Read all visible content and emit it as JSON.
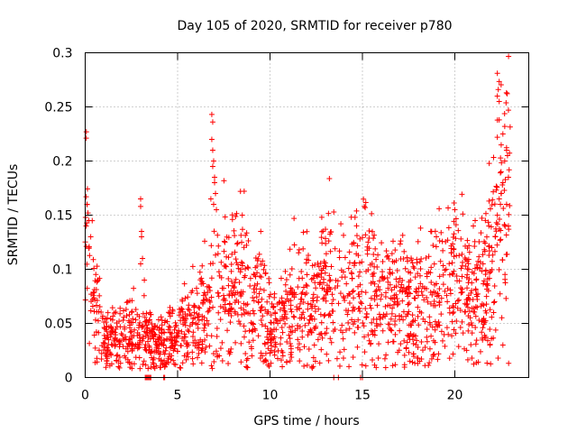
{
  "chart_data": {
    "type": "scatter",
    "title": "Day 105 of 2020, SRMTID for receiver p780",
    "xlabel": "GPS time / hours",
    "ylabel": "SRMTID / TECUs",
    "xlim": [
      0,
      24
    ],
    "ylim": [
      0,
      0.3
    ],
    "grid": true,
    "marker": "+",
    "colors": {
      "points": "#ff0000",
      "axes": "#000000",
      "grid": "#a0a0a0"
    },
    "x_ticks": [
      {
        "value": 0,
        "label": "0"
      },
      {
        "value": 5,
        "label": "5"
      },
      {
        "value": 10,
        "label": "10"
      },
      {
        "value": 15,
        "label": "15"
      },
      {
        "value": 20,
        "label": "20"
      }
    ],
    "y_ticks": [
      {
        "value": 0,
        "label": "0"
      },
      {
        "value": 0.05,
        "label": "0.05"
      },
      {
        "value": 0.1,
        "label": "0.1"
      },
      {
        "value": 0.15,
        "label": "0.15"
      },
      {
        "value": 0.2,
        "label": "0.2"
      },
      {
        "value": 0.25,
        "label": "0.25"
      },
      {
        "value": 0.3,
        "label": "0.3"
      }
    ],
    "trend": [
      {
        "x": 0.0,
        "y": 0.125
      },
      {
        "x": 0.25,
        "y": 0.11
      },
      {
        "x": 0.5,
        "y": 0.08
      },
      {
        "x": 0.8,
        "y": 0.05
      },
      {
        "x": 1.0,
        "y": 0.035
      },
      {
        "x": 1.5,
        "y": 0.035
      },
      {
        "x": 2.0,
        "y": 0.038
      },
      {
        "x": 2.5,
        "y": 0.042
      },
      {
        "x": 3.0,
        "y": 0.04
      },
      {
        "x": 3.5,
        "y": 0.03
      },
      {
        "x": 4.0,
        "y": 0.03
      },
      {
        "x": 4.5,
        "y": 0.035
      },
      {
        "x": 5.0,
        "y": 0.04
      },
      {
        "x": 5.5,
        "y": 0.05
      },
      {
        "x": 6.0,
        "y": 0.055
      },
      {
        "x": 6.5,
        "y": 0.06
      },
      {
        "x": 7.0,
        "y": 0.08
      },
      {
        "x": 7.5,
        "y": 0.085
      },
      {
        "x": 8.0,
        "y": 0.08
      },
      {
        "x": 8.5,
        "y": 0.085
      },
      {
        "x": 9.0,
        "y": 0.075
      },
      {
        "x": 9.5,
        "y": 0.06
      },
      {
        "x": 10.0,
        "y": 0.055
      },
      {
        "x": 10.5,
        "y": 0.05
      },
      {
        "x": 11.0,
        "y": 0.06
      },
      {
        "x": 11.5,
        "y": 0.065
      },
      {
        "x": 12.0,
        "y": 0.065
      },
      {
        "x": 12.5,
        "y": 0.07
      },
      {
        "x": 13.0,
        "y": 0.085
      },
      {
        "x": 13.5,
        "y": 0.08
      },
      {
        "x": 14.0,
        "y": 0.075
      },
      {
        "x": 14.5,
        "y": 0.08
      },
      {
        "x": 15.0,
        "y": 0.095
      },
      {
        "x": 15.5,
        "y": 0.08
      },
      {
        "x": 16.0,
        "y": 0.07
      },
      {
        "x": 16.5,
        "y": 0.07
      },
      {
        "x": 17.0,
        "y": 0.075
      },
      {
        "x": 17.5,
        "y": 0.065
      },
      {
        "x": 18.0,
        "y": 0.065
      },
      {
        "x": 18.5,
        "y": 0.07
      },
      {
        "x": 19.0,
        "y": 0.075
      },
      {
        "x": 19.5,
        "y": 0.08
      },
      {
        "x": 20.0,
        "y": 0.085
      },
      {
        "x": 20.5,
        "y": 0.085
      },
      {
        "x": 21.0,
        "y": 0.08
      },
      {
        "x": 21.5,
        "y": 0.075
      },
      {
        "x": 22.0,
        "y": 0.1
      },
      {
        "x": 22.5,
        "y": 0.15
      },
      {
        "x": 23.0,
        "y": 0.15
      }
    ],
    "spikes": [
      {
        "x": 0.05,
        "y": 0.167
      },
      {
        "x": 0.1,
        "y": 0.16
      },
      {
        "x": 0.15,
        "y": 0.152
      },
      {
        "x": 0.2,
        "y": 0.145
      },
      {
        "x": 0.3,
        "y": 0.13
      },
      {
        "x": 0.05,
        "y": 0.14
      },
      {
        "x": 3.0,
        "y": 0.165
      },
      {
        "x": 3.0,
        "y": 0.158
      },
      {
        "x": 3.05,
        "y": 0.135
      },
      {
        "x": 3.05,
        "y": 0.13
      },
      {
        "x": 3.1,
        "y": 0.11
      },
      {
        "x": 3.0,
        "y": 0.105
      },
      {
        "x": 3.2,
        "y": 0.09
      },
      {
        "x": 6.85,
        "y": 0.243
      },
      {
        "x": 6.9,
        "y": 0.236
      },
      {
        "x": 6.85,
        "y": 0.22
      },
      {
        "x": 6.9,
        "y": 0.21
      },
      {
        "x": 6.95,
        "y": 0.2
      },
      {
        "x": 6.9,
        "y": 0.195
      },
      {
        "x": 7.0,
        "y": 0.185
      },
      {
        "x": 7.0,
        "y": 0.18
      },
      {
        "x": 7.05,
        "y": 0.17
      },
      {
        "x": 6.8,
        "y": 0.165
      },
      {
        "x": 6.95,
        "y": 0.16
      },
      {
        "x": 7.1,
        "y": 0.155
      },
      {
        "x": 8.4,
        "y": 0.172
      },
      {
        "x": 8.5,
        "y": 0.15
      },
      {
        "x": 9.5,
        "y": 0.135
      },
      {
        "x": 11.3,
        "y": 0.147
      },
      {
        "x": 12.8,
        "y": 0.148
      },
      {
        "x": 13.0,
        "y": 0.137
      },
      {
        "x": 14.6,
        "y": 0.148
      },
      {
        "x": 15.1,
        "y": 0.158
      },
      {
        "x": 15.15,
        "y": 0.157
      },
      {
        "x": 18.7,
        "y": 0.135
      },
      {
        "x": 19.0,
        "y": 0.13
      },
      {
        "x": 20.0,
        "y": 0.155
      },
      {
        "x": 21.0,
        "y": 0.14
      },
      {
        "x": 21.1,
        "y": 0.145
      },
      {
        "x": 22.3,
        "y": 0.281
      },
      {
        "x": 22.35,
        "y": 0.266
      },
      {
        "x": 22.3,
        "y": 0.26
      },
      {
        "x": 22.4,
        "y": 0.255
      },
      {
        "x": 22.9,
        "y": 0.247
      },
      {
        "x": 22.4,
        "y": 0.238
      },
      {
        "x": 22.7,
        "y": 0.232
      },
      {
        "x": 22.3,
        "y": 0.222
      },
      {
        "x": 22.6,
        "y": 0.225
      },
      {
        "x": 22.8,
        "y": 0.21
      },
      {
        "x": 22.85,
        "y": 0.205
      },
      {
        "x": 22.7,
        "y": 0.2
      },
      {
        "x": 22.5,
        "y": 0.19
      },
      {
        "x": 22.9,
        "y": 0.185
      },
      {
        "x": 22.6,
        "y": 0.18
      },
      {
        "x": 22.5,
        "y": 0.17
      },
      {
        "x": 22.4,
        "y": 0.165
      },
      {
        "x": 22.8,
        "y": 0.16
      },
      {
        "x": 22.3,
        "y": 0.15
      },
      {
        "x": 22.9,
        "y": 0.14
      },
      {
        "x": 22.2,
        "y": 0.13
      },
      {
        "x": 22.0,
        "y": 0.12
      },
      {
        "x": 22.6,
        "y": 0.03
      },
      {
        "x": 21.9,
        "y": 0.03
      },
      {
        "x": 1.8,
        "y": 0.01
      },
      {
        "x": 4.2,
        "y": 0.012
      },
      {
        "x": 10.7,
        "y": 0.02
      },
      {
        "x": 18.1,
        "y": 0.015
      },
      {
        "x": 22.1,
        "y": 0.06
      },
      {
        "x": 22.15,
        "y": 0.07
      }
    ],
    "zero_points": [
      {
        "x": 3.25,
        "y": 0
      },
      {
        "x": 3.3,
        "y": 0
      },
      {
        "x": 3.35,
        "y": 0
      },
      {
        "x": 3.4,
        "y": 0
      },
      {
        "x": 3.45,
        "y": 0
      },
      {
        "x": 3.5,
        "y": 0
      },
      {
        "x": 3.55,
        "y": 0
      },
      {
        "x": 4.25,
        "y": 0
      },
      {
        "x": 4.3,
        "y": 0
      },
      {
        "x": 13.45,
        "y": 0
      },
      {
        "x": 13.7,
        "y": 0
      },
      {
        "x": 14.9,
        "y": 0
      },
      {
        "x": 15.0,
        "y": 0
      }
    ],
    "point_density_per_hour": 80,
    "spread": 0.45
  }
}
